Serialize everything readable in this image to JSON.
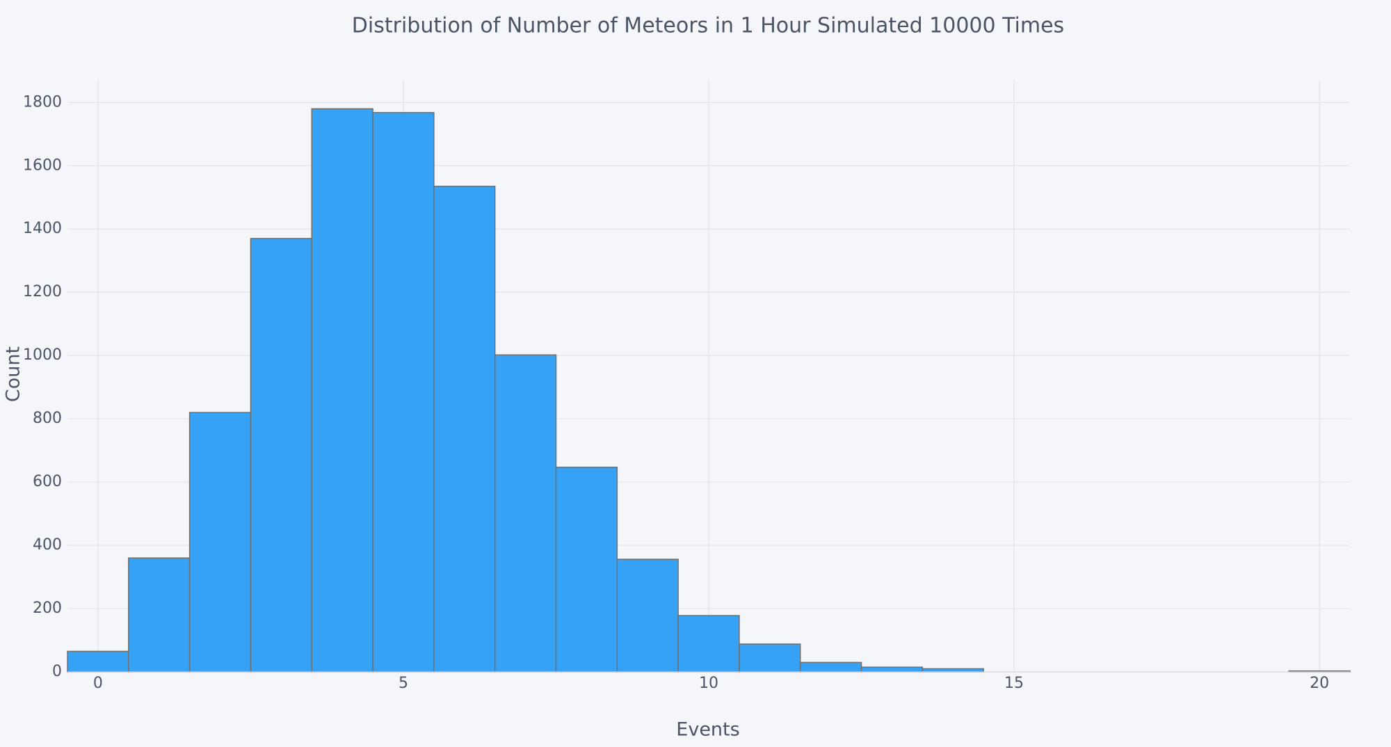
{
  "chart_data": {
    "type": "histogram",
    "title": "Distribution of Number of Meteors in 1 Hour Simulated 10000 Times",
    "x_label": "Events",
    "y_label": "Count",
    "bins": [
      -0.5,
      0.5,
      1.5,
      2.5,
      3.5,
      4.5,
      5.5,
      6.5,
      7.5,
      8.5,
      9.5,
      10.5,
      11.5,
      12.5,
      13.5,
      14.5,
      15.5,
      16.5,
      17.5,
      18.5,
      19.5,
      20.5
    ],
    "values": [
      65,
      360,
      820,
      1370,
      1780,
      1768,
      1535,
      1002,
      647,
      356,
      178,
      88,
      30,
      15,
      10,
      0,
      0,
      0,
      0,
      0,
      3
    ],
    "color": "#36a2f5",
    "edge_color": "#6f6f6f",
    "xlim": [
      -0.5,
      20.5
    ],
    "xticks": [
      0,
      5,
      10,
      15,
      20
    ],
    "ylim": [
      0,
      1871
    ],
    "yticks": [
      0,
      200,
      400,
      600,
      800,
      1000,
      1200,
      1400,
      1600,
      1800
    ],
    "grid": true
  }
}
